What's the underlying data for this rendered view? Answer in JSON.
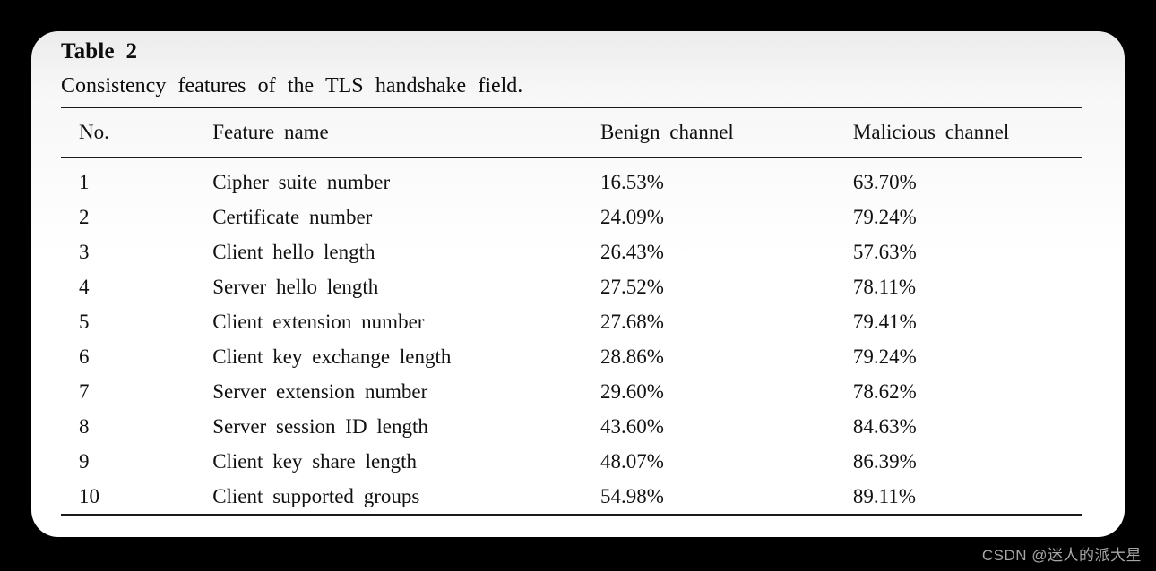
{
  "page": {
    "background": "#000000",
    "card_background": "#ffffff",
    "card_gradient_top": "#ececec",
    "rule_color": "#1a1a1a",
    "text_color": "#111111"
  },
  "paper_table": {
    "title": "Table 2",
    "caption": "Consistency features of the TLS handshake field.",
    "columns": {
      "no": "No.",
      "feature": "Feature name",
      "benign": "Benign channel",
      "malicious": "Malicious channel"
    },
    "rows": [
      {
        "no": "1",
        "feature": "Cipher suite number",
        "benign": "16.53%",
        "malicious": "63.70%"
      },
      {
        "no": "2",
        "feature": "Certificate number",
        "benign": "24.09%",
        "malicious": "79.24%"
      },
      {
        "no": "3",
        "feature": "Client hello length",
        "benign": "26.43%",
        "malicious": "57.63%"
      },
      {
        "no": "4",
        "feature": "Server hello length",
        "benign": "27.52%",
        "malicious": "78.11%"
      },
      {
        "no": "5",
        "feature": "Client extension number",
        "benign": "27.68%",
        "malicious": "79.41%"
      },
      {
        "no": "6",
        "feature": "Client key exchange length",
        "benign": "28.86%",
        "malicious": "79.24%"
      },
      {
        "no": "7",
        "feature": "Server extension number",
        "benign": "29.60%",
        "malicious": "78.62%"
      },
      {
        "no": "8",
        "feature": "Server session ID length",
        "benign": "43.60%",
        "malicious": "84.63%"
      },
      {
        "no": "9",
        "feature": "Client key share length",
        "benign": "48.07%",
        "malicious": "86.39%"
      },
      {
        "no": "10",
        "feature": "Client supported groups",
        "benign": "54.98%",
        "malicious": "89.11%"
      }
    ]
  },
  "watermark": {
    "text": "CSDN @迷人的派大星",
    "color": "#a6a6a6"
  }
}
